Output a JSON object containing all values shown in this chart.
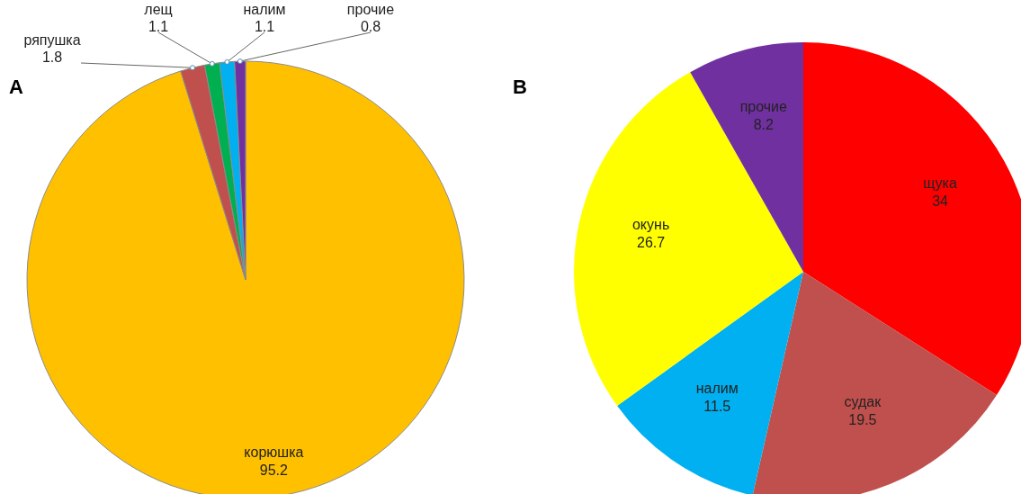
{
  "chart_data": [
    {
      "type": "pie",
      "title": "A",
      "categories": [
        "корюшка",
        "ряпушка",
        "лещ",
        "налим",
        "прочие"
      ],
      "values": [
        95.2,
        1.8,
        1.1,
        1.1,
        0.8
      ],
      "colors": [
        "#ffc000",
        "#c0504d",
        "#00b050",
        "#00b0f0",
        "#7030a0"
      ],
      "data_labels": true
    },
    {
      "type": "pie",
      "title": "B",
      "categories": [
        "щука",
        "судак",
        "налим",
        "окунь",
        "прочие"
      ],
      "values": [
        34,
        19.5,
        11.5,
        26.7,
        8.2
      ],
      "colors": [
        "#ff0000",
        "#c0504d",
        "#00b0f0",
        "#ffff00",
        "#7030a0"
      ],
      "data_labels": true
    }
  ]
}
